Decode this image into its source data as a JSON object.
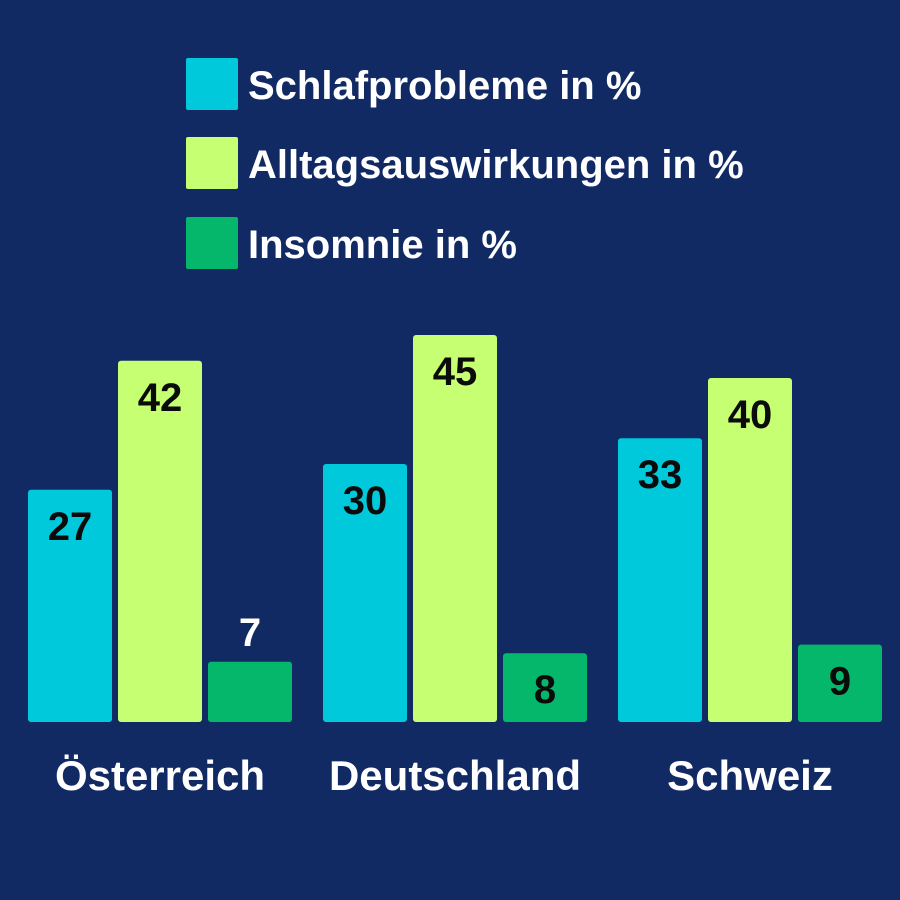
{
  "colors": {
    "background": "#122a64",
    "Schlafprobleme": "#00c9dc",
    "Alltagsauswirkungen": "#c6ff72",
    "Insomnie": "#05b76a",
    "label_dark": "#0b0b0b",
    "label_light": "#ffffff"
  },
  "chart_data": {
    "type": "bar",
    "categories": [
      "Österreich",
      "Deutschland",
      "Schweiz"
    ],
    "series": [
      {
        "name": "Schlafprobleme in %",
        "key": "Schlafprobleme",
        "values": [
          27,
          30,
          33
        ]
      },
      {
        "name": "Alltagsauswirkungen in %",
        "key": "Alltagsauswirkungen",
        "values": [
          42,
          45,
          40
        ]
      },
      {
        "name": "Insomnie in %",
        "key": "Insomnie",
        "values": [
          7,
          8,
          9
        ]
      }
    ],
    "title": "",
    "xlabel": "",
    "ylabel": "",
    "ylim": [
      0,
      45
    ],
    "grid": false,
    "legend_position": "top",
    "data_labels": true
  }
}
